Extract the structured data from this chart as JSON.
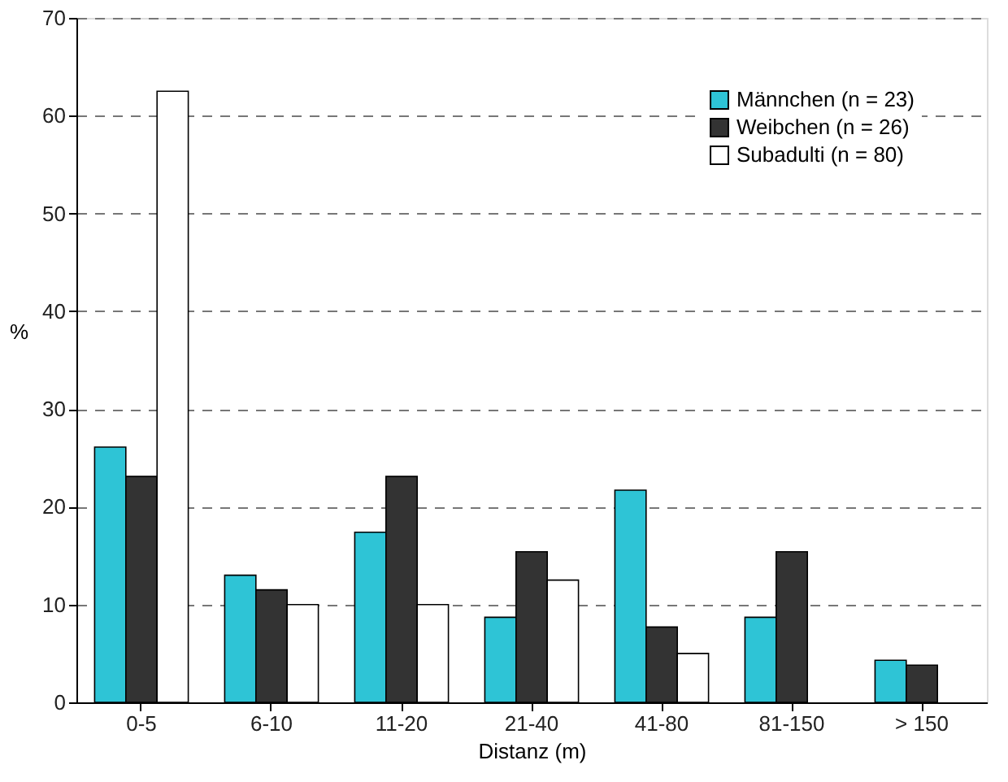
{
  "chart_data": {
    "type": "bar",
    "xlabel": "Distanz (m)",
    "ylabel": "%",
    "categories": [
      "0-5",
      "6-10",
      "11-20",
      "21-40",
      "41-80",
      "81-150",
      "> 150"
    ],
    "series": [
      {
        "name": "Männchen (n = 23)",
        "color": "#2ec4d6",
        "values": [
          26.1,
          13.0,
          17.4,
          8.7,
          21.7,
          8.7,
          4.3
        ]
      },
      {
        "name": "Weibchen (n = 26)",
        "color": "#333333",
        "values": [
          23.1,
          11.5,
          23.1,
          15.4,
          7.7,
          15.4,
          3.8
        ]
      },
      {
        "name": "Subadulti (n = 80)",
        "color": "#ffffff",
        "values": [
          62.5,
          10.0,
          10.0,
          12.5,
          5.0,
          null,
          null
        ]
      }
    ],
    "ylim": [
      0,
      70
    ],
    "yticks": [
      0,
      10,
      20,
      30,
      40,
      50,
      60,
      70
    ],
    "grid": "y",
    "legend": "top right"
  }
}
